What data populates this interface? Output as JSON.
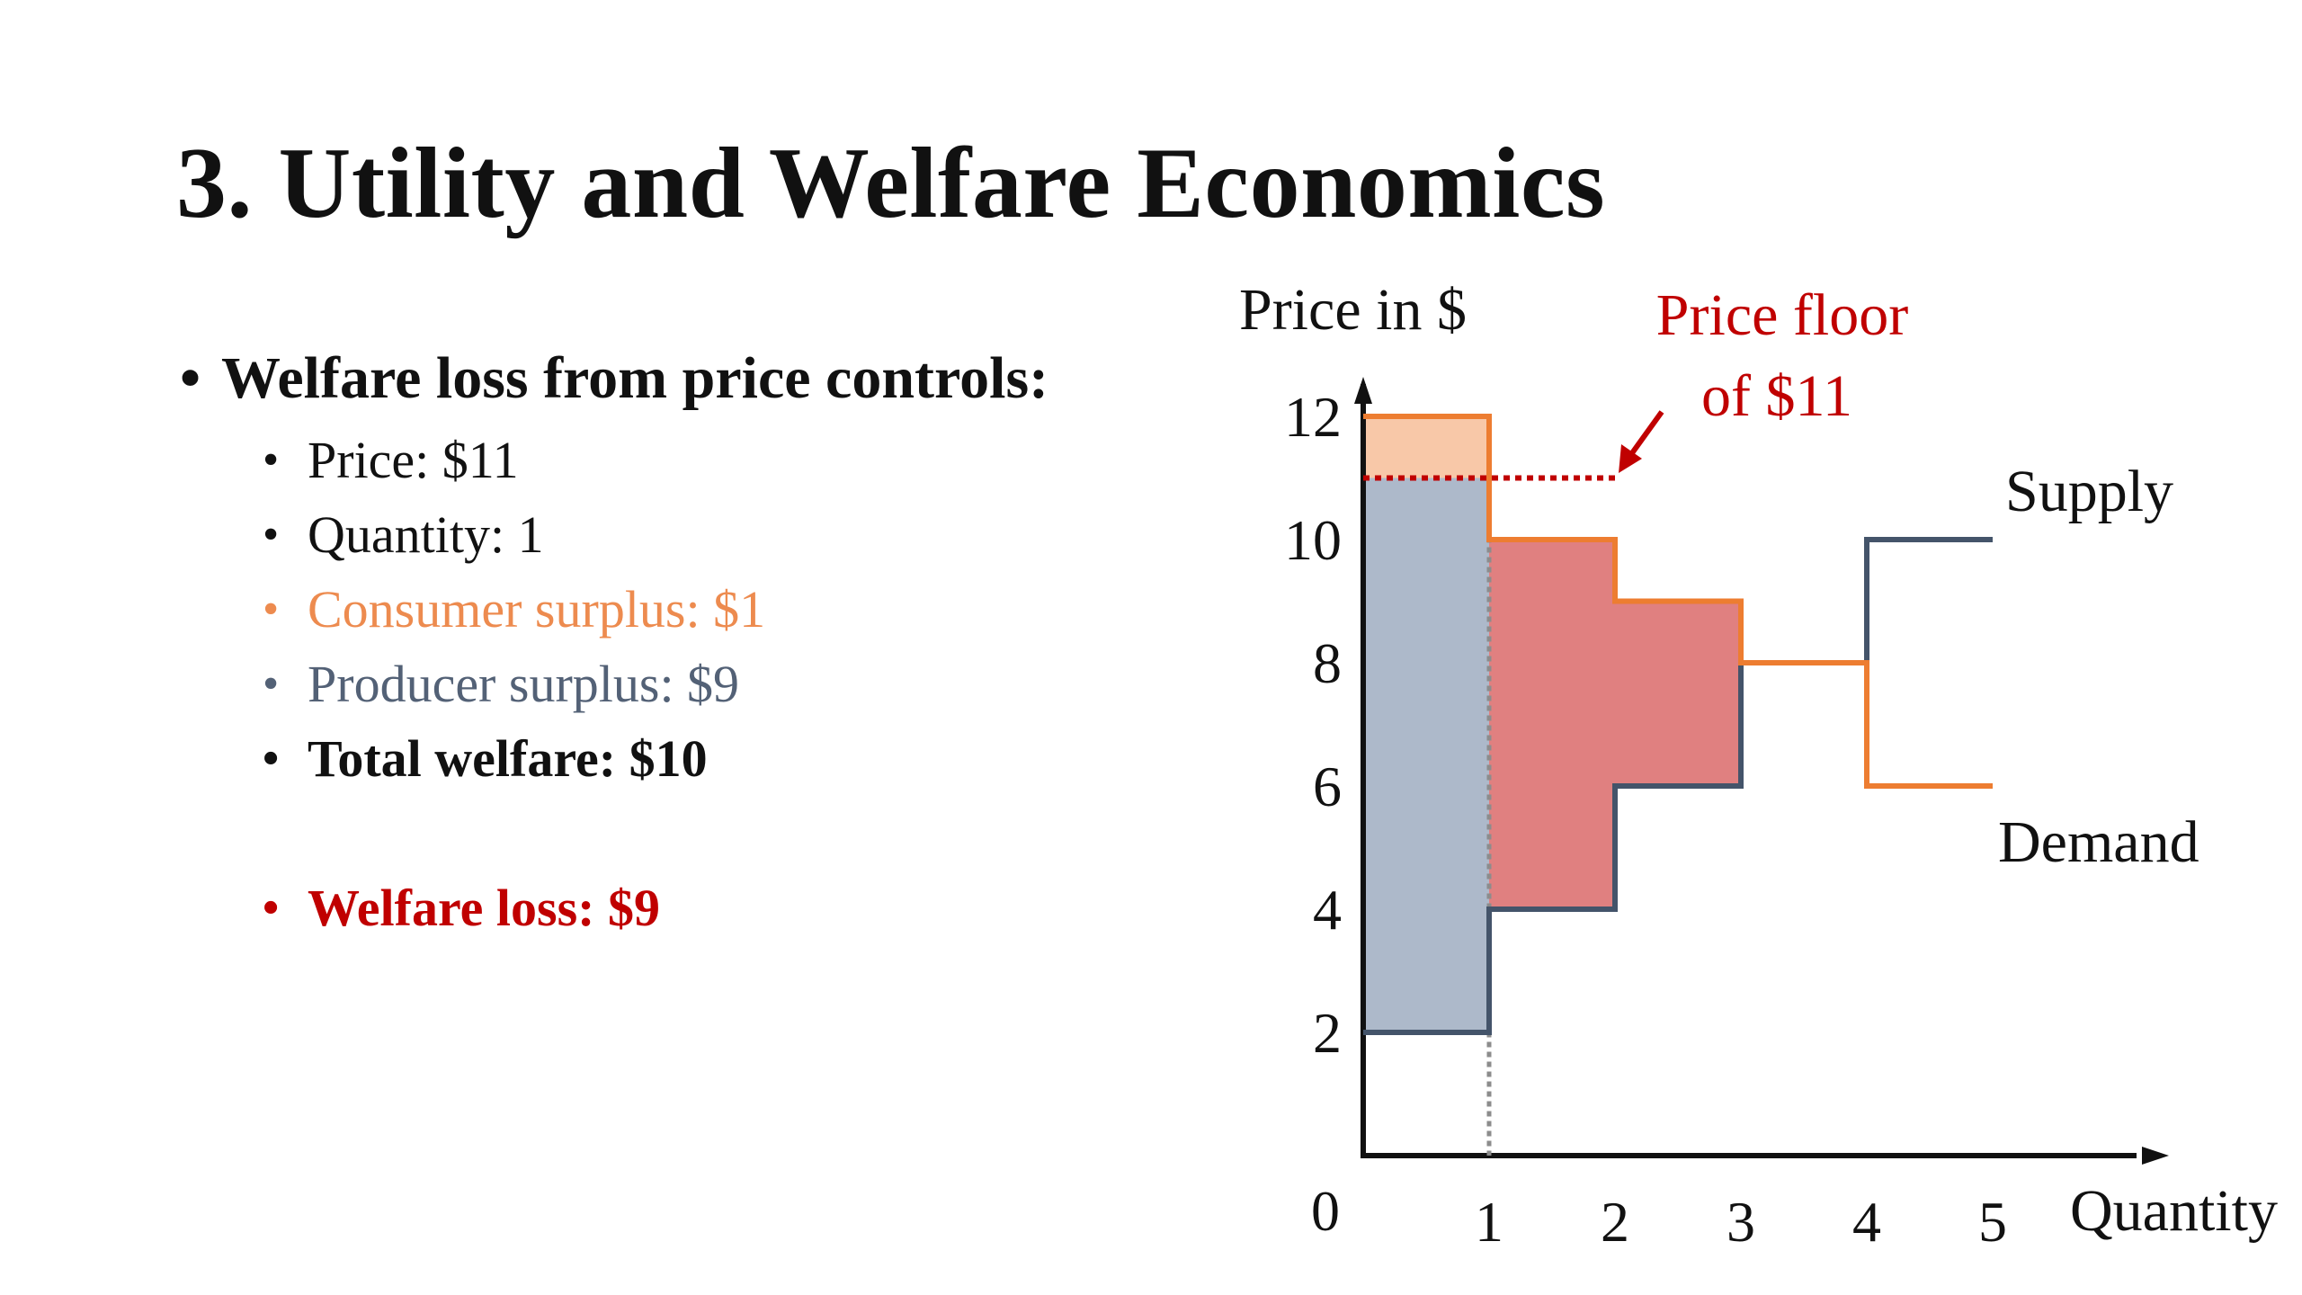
{
  "slide": {
    "title": "3. Utility and Welfare Economics"
  },
  "bullets": {
    "main": "Welfare loss from price controls:",
    "items": [
      {
        "text": "Price: $11",
        "color": "#111111",
        "bold": false
      },
      {
        "text": "Quantity: 1",
        "color": "#111111",
        "bold": false
      },
      {
        "text": "Consumer surplus: $1",
        "color": "#ED8B4F",
        "bold": false
      },
      {
        "text": "Producer surplus: $9",
        "color": "#536176",
        "bold": false
      },
      {
        "text": "Total welfare: $10",
        "color": "#111111",
        "bold": true
      }
    ],
    "loss": {
      "text": "Welfare loss: $9",
      "color": "#C00000",
      "bold": true
    }
  },
  "chart_data": {
    "type": "area",
    "ylabel": "Price in $",
    "xlabel": "Quantity",
    "origin_label": "0",
    "xlim": [
      0,
      5
    ],
    "ylim": [
      0,
      12
    ],
    "xticks": [
      1,
      2,
      3,
      4,
      5
    ],
    "yticks": [
      2,
      4,
      6,
      8,
      10,
      12
    ],
    "price_floor": 11,
    "quantity_traded": 1,
    "supply": {
      "name": "Supply",
      "color": "#44546A",
      "steps": [
        [
          0,
          2
        ],
        [
          1,
          2
        ],
        [
          1,
          4
        ],
        [
          2,
          4
        ],
        [
          2,
          6
        ],
        [
          3,
          6
        ],
        [
          3,
          8
        ],
        [
          4,
          8
        ],
        [
          4,
          10
        ],
        [
          5,
          10
        ]
      ]
    },
    "demand": {
      "name": "Demand",
      "color": "#ED7D31",
      "steps": [
        [
          0,
          12
        ],
        [
          1,
          12
        ],
        [
          1,
          10
        ],
        [
          2,
          10
        ],
        [
          2,
          9
        ],
        [
          3,
          9
        ],
        [
          3,
          8
        ],
        [
          4,
          8
        ],
        [
          4,
          6
        ],
        [
          5,
          6
        ]
      ]
    },
    "regions": {
      "consumer_surplus": {
        "color": "#F8C8A8",
        "bounds": [
          [
            0,
            11
          ],
          [
            1,
            12
          ]
        ]
      },
      "producer_surplus": {
        "color": "#ADB9CA",
        "bounds": [
          [
            0,
            2
          ],
          [
            1,
            11
          ]
        ]
      },
      "welfare_loss": {
        "color": "#E08080",
        "polygon": [
          [
            1,
            4
          ],
          [
            1,
            10
          ],
          [
            2,
            10
          ],
          [
            2,
            9
          ],
          [
            3,
            9
          ],
          [
            3,
            8
          ],
          [
            3,
            6
          ],
          [
            2,
            6
          ],
          [
            2,
            4
          ]
        ]
      }
    },
    "annotation": {
      "lines": [
        "Price floor",
        "of $11"
      ],
      "color": "#C00000"
    }
  }
}
